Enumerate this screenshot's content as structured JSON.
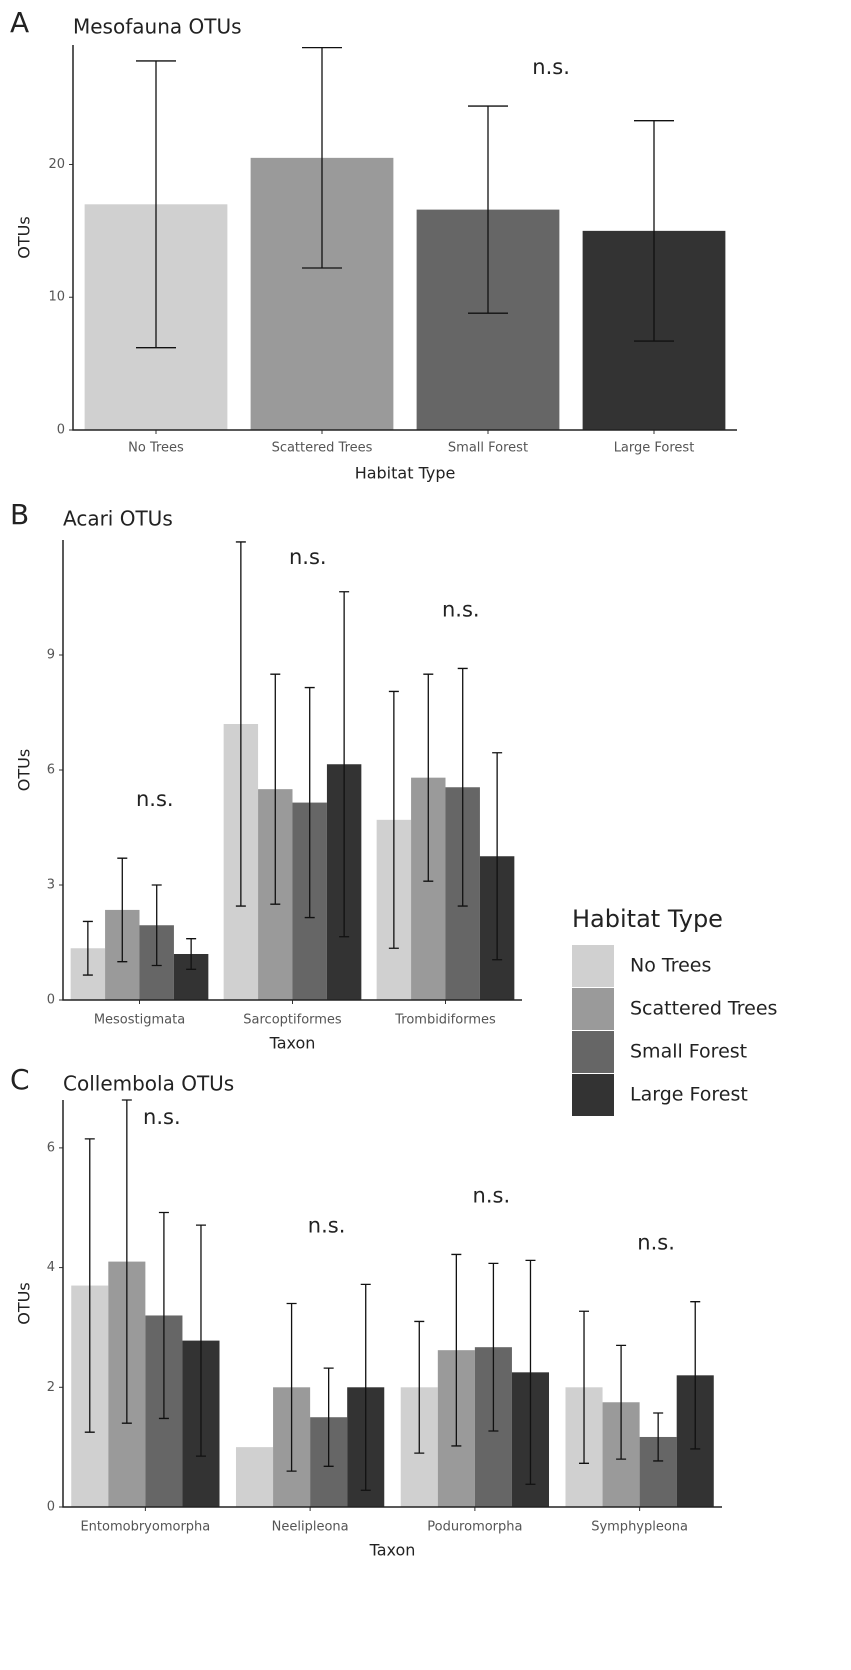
{
  "chart_data": [
    {
      "type": "bar",
      "panel": "A",
      "title": "Mesofauna OTUs",
      "xlabel": "Habitat Type",
      "ylabel": "OTUs",
      "categories": [
        "No Trees",
        "Scattered Trees",
        "Small Forest",
        "Large Forest"
      ],
      "values": [
        17.0,
        20.5,
        16.6,
        15.0
      ],
      "errors": [
        10.8,
        8.3,
        7.8,
        8.3
      ],
      "colors": [
        "#d0d0d0",
        "#9a9a9a",
        "#666666",
        "#333333"
      ],
      "annotation": "n.s.",
      "ylim": [
        0,
        29
      ],
      "yticks": [
        0,
        10,
        20
      ]
    },
    {
      "type": "grouped-bar",
      "panel": "B",
      "title": "Acari OTUs",
      "xlabel": "Taxon",
      "ylabel": "OTUs",
      "categories": [
        "Mesostigmata",
        "Sarcoptiformes",
        "Trombidiformes"
      ],
      "group_labels": [
        "n.s.",
        "n.s.",
        "n.s."
      ],
      "legend_title": "Habitat Type",
      "legend": "right",
      "series": [
        {
          "name": "No Trees",
          "color": "#d0d0d0",
          "values": [
            1.35,
            7.2,
            4.7
          ],
          "errors": [
            0.7,
            4.75,
            3.35
          ]
        },
        {
          "name": "Scattered Trees",
          "color": "#9a9a9a",
          "values": [
            2.35,
            5.5,
            5.8
          ],
          "errors": [
            1.35,
            3.0,
            2.7
          ]
        },
        {
          "name": "Small Forest",
          "color": "#666666",
          "values": [
            1.95,
            5.15,
            5.55
          ],
          "errors": [
            1.05,
            3.0,
            3.1
          ]
        },
        {
          "name": "Large Forest",
          "color": "#333333",
          "values": [
            1.2,
            6.15,
            3.75
          ],
          "errors": [
            0.4,
            4.5,
            2.7
          ]
        }
      ],
      "ylim": [
        0,
        12
      ],
      "yticks": [
        0,
        3,
        6,
        9
      ]
    },
    {
      "type": "grouped-bar",
      "panel": "C",
      "title": "Collembola OTUs",
      "xlabel": "Taxon",
      "ylabel": "OTUs",
      "categories": [
        "Entomobryomorpha",
        "Neelipleona",
        "Poduromorpha",
        "Symphypleona"
      ],
      "group_labels": [
        "n.s.",
        "n.s.",
        "n.s.",
        "n.s."
      ],
      "series": [
        {
          "name": "No Trees",
          "color": "#d0d0d0",
          "values": [
            3.7,
            1.0,
            2.0,
            2.0
          ],
          "errors": [
            2.45,
            null,
            1.1,
            1.27
          ]
        },
        {
          "name": "Scattered Trees",
          "color": "#9a9a9a",
          "values": [
            4.1,
            2.0,
            2.62,
            1.75
          ],
          "errors": [
            2.7,
            1.4,
            1.6,
            0.95
          ]
        },
        {
          "name": "Small Forest",
          "color": "#666666",
          "values": [
            3.2,
            1.5,
            2.67,
            1.17
          ],
          "errors": [
            1.72,
            0.82,
            1.4,
            0.4
          ]
        },
        {
          "name": "Large Forest",
          "color": "#333333",
          "values": [
            2.78,
            2.0,
            2.25,
            2.2
          ],
          "errors": [
            1.93,
            1.72,
            1.87,
            1.23
          ]
        }
      ],
      "ylim": [
        0,
        6.8
      ],
      "yticks": [
        0,
        2,
        4,
        6
      ]
    }
  ]
}
